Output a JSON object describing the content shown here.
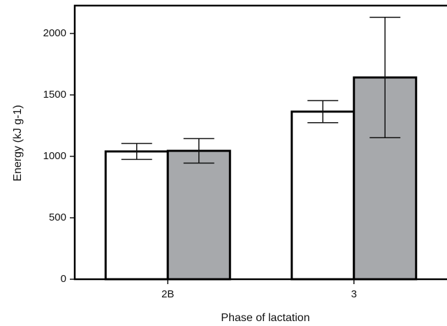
{
  "chart_data": {
    "type": "bar",
    "x_label": "Phase of lactation",
    "y_label": "Energy (kJ g-1)",
    "categories": [
      "2B",
      "3"
    ],
    "series": [
      {
        "color": "#ffffff",
        "values": [
          1040,
          1364
        ],
        "errors": [
          65,
          90
        ]
      },
      {
        "color": "#a7a9ac",
        "values": [
          1045,
          1642
        ],
        "errors": [
          100,
          490
        ]
      }
    ],
    "ylim": [
      0,
      2227
    ],
    "yticks": [
      0,
      500,
      1000,
      1500,
      2000
    ]
  }
}
